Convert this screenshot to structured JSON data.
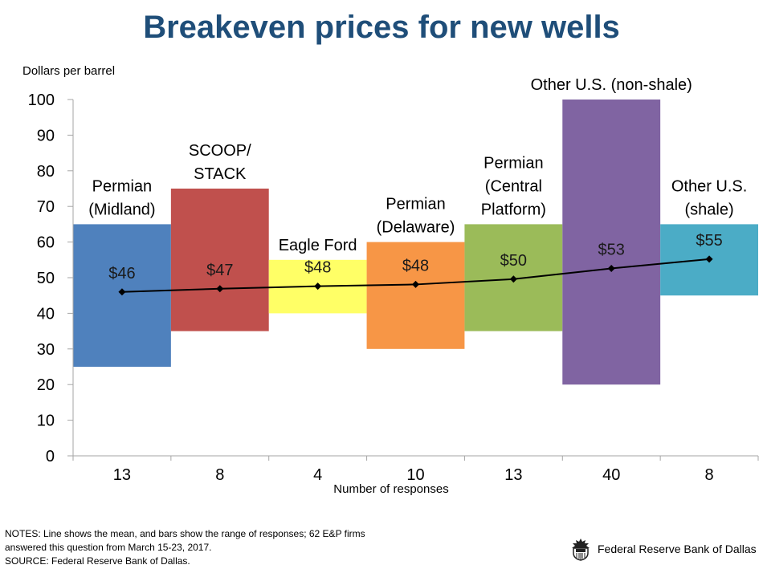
{
  "chart_data": {
    "type": "bar",
    "subtype": "floating-range-bars-with-mean-line",
    "title": "Breakeven prices for new wells",
    "ylabel": "Dollars per barrel",
    "xlabel": "Number of responses",
    "ylim": [
      0,
      100
    ],
    "yticks": [
      "0",
      "10",
      "20",
      "30",
      "40",
      "50",
      "60",
      "70",
      "80",
      "90",
      "100"
    ],
    "grid": false,
    "categories": [
      {
        "name": "Permian (Midland)",
        "label_lines": [
          "Permian",
          "(Midland)"
        ],
        "responses": "13",
        "low": 25,
        "high": 65,
        "mean": 46.0,
        "mean_label": "$46",
        "color": "#4f81bd"
      },
      {
        "name": "SCOOP/STACK",
        "label_lines": [
          "SCOOP/",
          "STACK"
        ],
        "responses": "8",
        "low": 35,
        "high": 75,
        "mean": 46.9,
        "mean_label": "$47",
        "color": "#c0504d"
      },
      {
        "name": "Eagle Ford",
        "label_lines": [
          "Eagle Ford"
        ],
        "responses": "4",
        "low": 40,
        "high": 55,
        "mean": 47.6,
        "mean_label": "$48",
        "color": "#ffff66"
      },
      {
        "name": "Permian (Delaware)",
        "label_lines": [
          "Permian",
          "(Delaware)"
        ],
        "responses": "10",
        "low": 30,
        "high": 60,
        "mean": 48.1,
        "mean_label": "$48",
        "color": "#f79646"
      },
      {
        "name": "Permian (Central Platform)",
        "label_lines": [
          "Permian",
          "(Central",
          "Platform)"
        ],
        "responses": "13",
        "low": 35,
        "high": 65,
        "mean": 49.6,
        "mean_label": "$50",
        "color": "#9bbb59"
      },
      {
        "name": "Other U.S. (non-shale)",
        "label_lines": [
          "Other U.S. (non-shale)"
        ],
        "responses": "40",
        "low": 20,
        "high": 100,
        "mean": 52.6,
        "mean_label": "$53",
        "color": "#8064a2"
      },
      {
        "name": "Other U.S. (shale)",
        "label_lines": [
          "Other U.S.",
          "(shale)"
        ],
        "responses": "8",
        "low": 45,
        "high": 65,
        "mean": 55.2,
        "mean_label": "$55",
        "color": "#4bacc6"
      }
    ],
    "mean_line_color": "#000000",
    "legend": "none"
  },
  "notes": {
    "line1": "NOTES: Line shows the mean, and bars show the range of responses; 62 E&P firms",
    "line2": "answered this question from March 15-23, 2017.",
    "source": "SOURCE: Federal Reserve Bank of Dallas."
  },
  "brand": {
    "name": "Federal Reserve Bank of Dallas",
    "icon": "federal-reserve-seal-icon"
  }
}
